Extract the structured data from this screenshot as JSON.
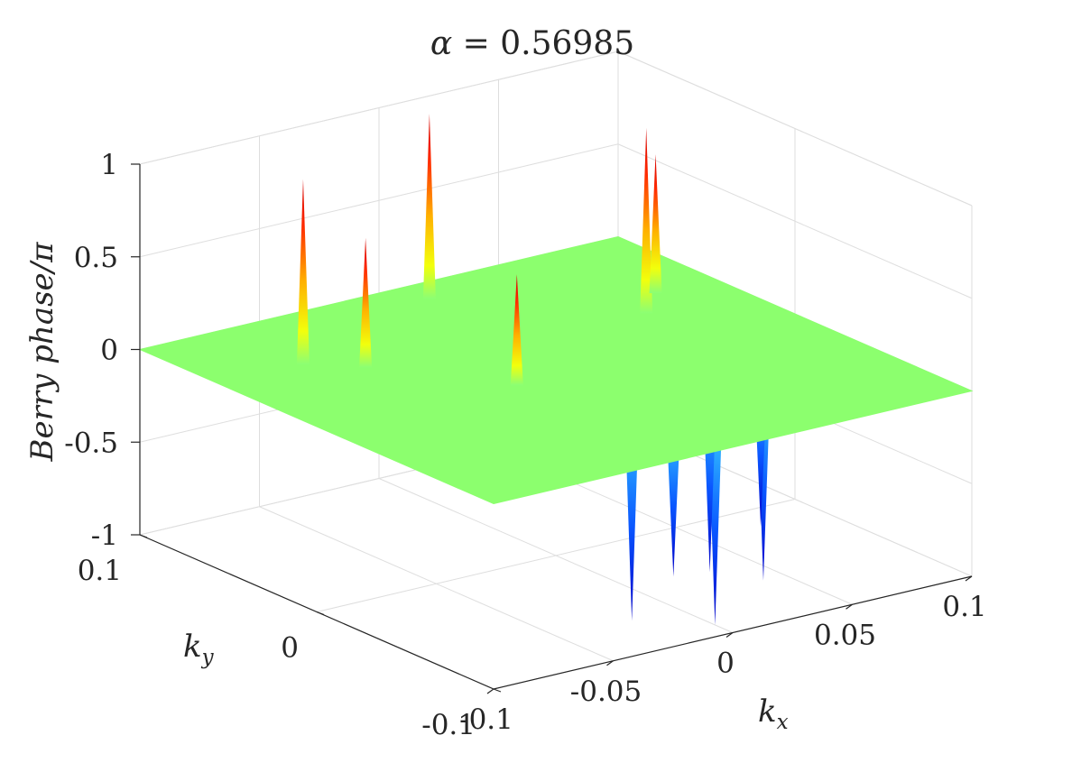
{
  "chart_data": {
    "type": "surface3d",
    "title_prefix": "α = ",
    "alpha_value": "0.56985",
    "xlabel": "k",
    "xlabel_sub": "x",
    "ylabel": "k",
    "ylabel_sub": "y",
    "zlabel": "Berry phase/π",
    "x_range": [
      -0.1,
      0.1
    ],
    "y_range": [
      -0.1,
      0.1
    ],
    "z_range": [
      -1,
      1
    ],
    "x_ticks": [
      "-0.1",
      "-0.05",
      "0",
      "0.05",
      "0.1"
    ],
    "y_ticks": [
      "-0.1",
      "0",
      "0.1"
    ],
    "z_ticks": [
      "-1",
      "-0.5",
      "0",
      "0.5",
      "1"
    ],
    "grid": true,
    "colormap": "jet",
    "baseline_value": 0,
    "peaks": [
      {
        "x": -0.065,
        "y": 0.055,
        "z": 1.0
      },
      {
        "x": -0.05,
        "y": 0.04,
        "z": 0.7
      },
      {
        "x": 0.01,
        "y": 0.085,
        "z": 1.0
      },
      {
        "x": 0.06,
        "y": 0.03,
        "z": 1.0
      },
      {
        "x": 0.075,
        "y": 0.045,
        "z": 0.75
      },
      {
        "x": -0.02,
        "y": -0.005,
        "z": 0.6
      }
    ],
    "dips": [
      {
        "x": -0.02,
        "y": -0.07,
        "z": -1.0
      },
      {
        "x": -0.01,
        "y": -0.08,
        "z": -0.75
      },
      {
        "x": 0.0,
        "y": -0.09,
        "z": -1.0
      },
      {
        "x": 0.02,
        "y": -0.06,
        "z": -0.9
      },
      {
        "x": 0.035,
        "y": -0.07,
        "z": -0.95
      },
      {
        "x": 0.045,
        "y": -0.055,
        "z": -0.75
      }
    ]
  }
}
